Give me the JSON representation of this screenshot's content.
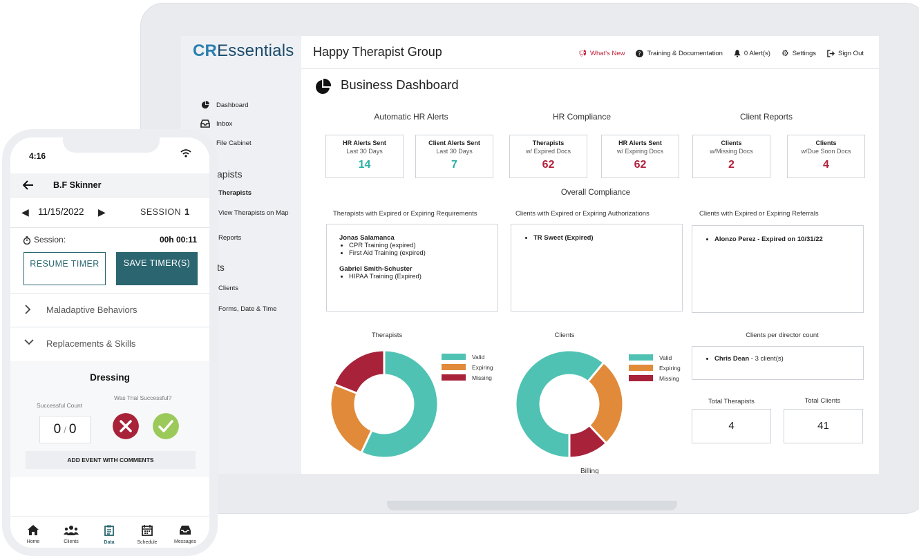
{
  "laptop": {
    "logo": {
      "mark": "CR",
      "name": "Essentials"
    },
    "sidebar": {
      "items": [
        {
          "label": "Dashboard",
          "icon": "pie-chart-icon"
        },
        {
          "label": "Inbox",
          "icon": "inbox-icon"
        },
        {
          "label": "File Cabinet",
          "icon": "folder-icon"
        }
      ],
      "section_therapists": "apists",
      "therapist_items": [
        "Therapists",
        "View Therapists on Map",
        "Reports"
      ],
      "section_clients": "ts",
      "client_items": [
        "Clients",
        "Forms, Date & Time"
      ]
    },
    "topbar": {
      "org_name": "Happy Therapist Group",
      "links": [
        {
          "label": "What's New",
          "icon": "megaphone-icon"
        },
        {
          "label": "Training & Documentation",
          "icon": "help-icon"
        },
        {
          "label": "0 Alert(s)",
          "icon": "bell-icon"
        },
        {
          "label": "Settings",
          "icon": "gear-icon"
        },
        {
          "label": "Sign Out",
          "icon": "sign-out-icon"
        }
      ]
    },
    "dashboard": {
      "title": "Business Dashboard",
      "sections": [
        "Automatic HR Alerts",
        "HR Compliance",
        "Client Reports"
      ],
      "cards": [
        {
          "title": "HR Alerts Sent",
          "sub": "Last 30 Days",
          "value": "14",
          "color": "#2bb0a4"
        },
        {
          "title": "Client Alerts Sent",
          "sub": "Last 30 Days",
          "value": "7",
          "color": "#2bb0a4"
        },
        {
          "title": "Therapists",
          "sub": "w/ Expired Docs",
          "value": "62",
          "color": "#b0203a"
        },
        {
          "title": "HR Alerts Sent",
          "sub": "w/ Expiring Docs",
          "value": "62",
          "color": "#b0203a"
        },
        {
          "title": "Clients",
          "sub": "w/Missing Docs",
          "value": "2",
          "color": "#b0203a"
        },
        {
          "title": "Clients",
          "sub": "w/Due Soon Docs",
          "value": "4",
          "color": "#b0203a"
        }
      ],
      "overall_label": "Overall Compliance",
      "lists": {
        "therapists_label": "Therapists with Expired or Expiring Requirements",
        "therapists": [
          {
            "name": "Jonas Salamanca",
            "items": [
              "CPR Training (expired)",
              "First Aid Training (expired)"
            ]
          },
          {
            "name": "Gabriel Smith-Schuster",
            "items": [
              "HIPAA Training (Expired)"
            ]
          }
        ],
        "auth_label": "Clients with Expired or Expiring Authorizations",
        "auth_items": [
          "TR Sweet (Expired)"
        ],
        "referral_label": "Clients with Expired or Expiring Referrals",
        "referral_items": [
          "Alonzo Perez - Expired on 10/31/22"
        ]
      },
      "charts": {
        "therapists_title": "Therapists",
        "clients_title": "Clients",
        "legend": [
          "Valid",
          "Expiring",
          "Missing"
        ],
        "colors": {
          "valid": "#4fc2b3",
          "expiring": "#e08a3a",
          "missing": "#a8223a"
        }
      },
      "director": {
        "label": "Clients per director count",
        "item_name": "Chris Dean",
        "item_value": "- 3 client(s)"
      },
      "totals": {
        "therapists_label": "Total Therapists",
        "therapists_value": "4",
        "clients_label": "Total Clients",
        "clients_value": "41"
      },
      "billing_label": "Billing"
    }
  },
  "phone": {
    "time": "4:16",
    "client_name": "B.F Skinner",
    "date": "11/15/2022",
    "session_label": "SESSION",
    "session_number": "1",
    "session_text": "Session:",
    "elapsed": "00h 00:11",
    "resume_button": "RESUME TIMER",
    "save_button": "SAVE TIMER(S)",
    "accordion": [
      "Maladaptive Behaviors",
      "Replacements & Skills"
    ],
    "skill_title": "Dressing",
    "successful_count_label": "Successful Count",
    "trial_label": "Was Trial Successful?",
    "count_value": "0",
    "count_total": "0",
    "add_event_button": "ADD EVENT WITH COMMENTS",
    "tabs": [
      {
        "label": "Home",
        "icon": "home-icon"
      },
      {
        "label": "Clients",
        "icon": "clients-icon"
      },
      {
        "label": "Data",
        "icon": "clipboard-icon"
      },
      {
        "label": "Schedule",
        "icon": "calendar-icon"
      },
      {
        "label": "Messages",
        "icon": "inbox-icon"
      }
    ],
    "active_tab": "Data"
  },
  "chart_data": [
    {
      "type": "pie",
      "title": "Therapists",
      "categories": [
        "Valid",
        "Expiring",
        "Missing"
      ],
      "values": [
        57,
        24,
        19
      ]
    },
    {
      "type": "pie",
      "title": "Clients",
      "categories": [
        "Valid",
        "Expiring",
        "Missing"
      ],
      "values": [
        61,
        27,
        12
      ]
    }
  ]
}
